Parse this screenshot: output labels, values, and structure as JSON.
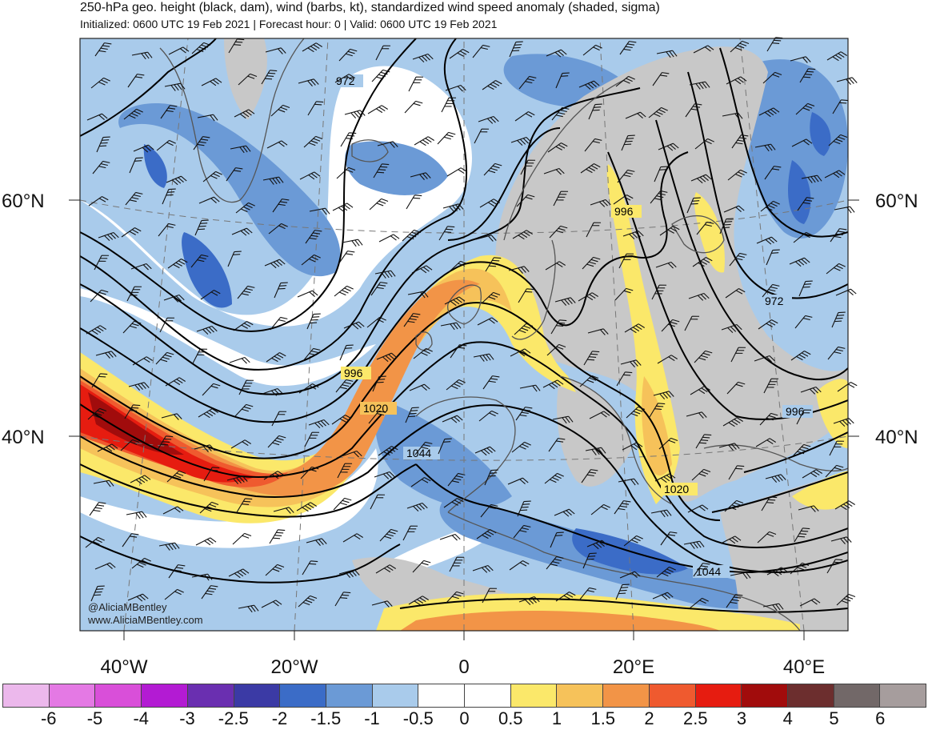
{
  "header": {
    "title": "250-hPa geo. height (black, dam), wind (barbs, kt), standardized wind speed anomaly (shaded, sigma)",
    "subtitle": "Initialized: 0600 UTC 19 Feb 2021 | Forecast hour: 0 | Valid: 0600 UTC 19 Feb 2021"
  },
  "map": {
    "lat_labels": {
      "lat60_left": "60°N",
      "lat60_right": "60°N",
      "lat40_left": "40°N",
      "lat40_right": "40°N"
    },
    "lon_labels": [
      "40°W",
      "20°W",
      "0",
      "20°E",
      "40°E"
    ],
    "contour_labels": [
      "972",
      "996",
      "1020",
      "1044",
      "996",
      "972",
      "996",
      "1020",
      "1044"
    ],
    "credits": [
      "@AliciaMBentley",
      "www.AliciaMBentley.com"
    ],
    "colors": {
      "land": "#c8c8c8",
      "coast": "#555555",
      "contour": "#000000"
    }
  },
  "colorbar": {
    "ticks": [
      "-6",
      "-5",
      "-4",
      "-3",
      "-2.5",
      "-2",
      "-1.5",
      "-1",
      "-0.5",
      "0",
      "0.5",
      "1",
      "1.5",
      "2",
      "2.5",
      "3",
      "4",
      "5",
      "6"
    ],
    "colors": [
      "#ecb8ec",
      "#e479e4",
      "#d94fd9",
      "#b31bd3",
      "#6a2fb0",
      "#3b3aa5",
      "#3b6cc7",
      "#6b9ad6",
      "#a9cbeb",
      "#ffffff",
      "#ffffff",
      "#fbe86a",
      "#f6c25a",
      "#f29447",
      "#ef5a2f",
      "#e61c10",
      "#a10c0c",
      "#6c2e2e",
      "#726868",
      "#a69d9d"
    ]
  }
}
